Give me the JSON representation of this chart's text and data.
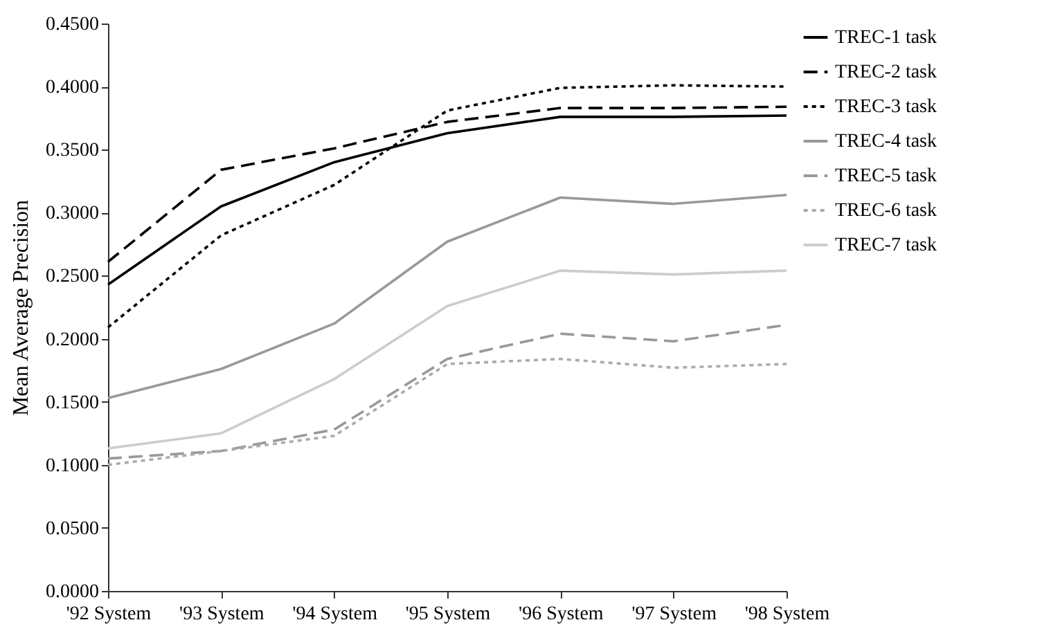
{
  "chart_data": {
    "type": "line",
    "ylabel": "Mean Average Precision",
    "categories": [
      "'92 System",
      "'93 System",
      "'94 System",
      "'95 System",
      "'96 System",
      "'97 System",
      "'98 System"
    ],
    "series": [
      {
        "name": "TREC-1 task",
        "color": "#000000",
        "line_style": "solid",
        "values": [
          0.243,
          0.305,
          0.34,
          0.363,
          0.376,
          0.376,
          0.377
        ]
      },
      {
        "name": "TREC-2 task",
        "color": "#000000",
        "line_style": "dashed",
        "values": [
          0.261,
          0.334,
          0.351,
          0.372,
          0.383,
          0.383,
          0.384
        ]
      },
      {
        "name": "TREC-3 task",
        "color": "#000000",
        "line_style": "dotted",
        "values": [
          0.209,
          0.282,
          0.322,
          0.381,
          0.399,
          0.401,
          0.4
        ]
      },
      {
        "name": "TREC-4 task",
        "color": "#999999",
        "line_style": "solid",
        "values": [
          0.153,
          0.176,
          0.212,
          0.277,
          0.312,
          0.307,
          0.314
        ]
      },
      {
        "name": "TREC-5 task",
        "color": "#999999",
        "line_style": "dashed",
        "values": [
          0.105,
          0.111,
          0.128,
          0.184,
          0.204,
          0.198,
          0.211
        ]
      },
      {
        "name": "TREC-6 task",
        "color": "#aaaaaa",
        "line_style": "dotted",
        "values": [
          0.1,
          0.111,
          0.123,
          0.18,
          0.184,
          0.177,
          0.18
        ]
      },
      {
        "name": "TREC-7 task",
        "color": "#cccccc",
        "line_style": "solid",
        "values": [
          0.113,
          0.125,
          0.168,
          0.226,
          0.254,
          0.251,
          0.254
        ]
      }
    ],
    "ylim": [
      0,
      0.45
    ],
    "yticks": [
      {
        "value": 0,
        "label": "0.0000"
      },
      {
        "value": 0.05,
        "label": "0.0500"
      },
      {
        "value": 0.1,
        "label": "0.1000"
      },
      {
        "value": 0.15,
        "label": "0.1500"
      },
      {
        "value": 0.2,
        "label": "0.2000"
      },
      {
        "value": 0.25,
        "label": "0.2500"
      },
      {
        "value": 0.3,
        "label": "0.3000"
      },
      {
        "value": 0.35,
        "label": "0.3500"
      },
      {
        "value": 0.4,
        "label": "0.4000"
      },
      {
        "value": 0.45,
        "label": "0.4500"
      }
    ],
    "grid": false,
    "legend": "top right",
    "marker": "none"
  }
}
